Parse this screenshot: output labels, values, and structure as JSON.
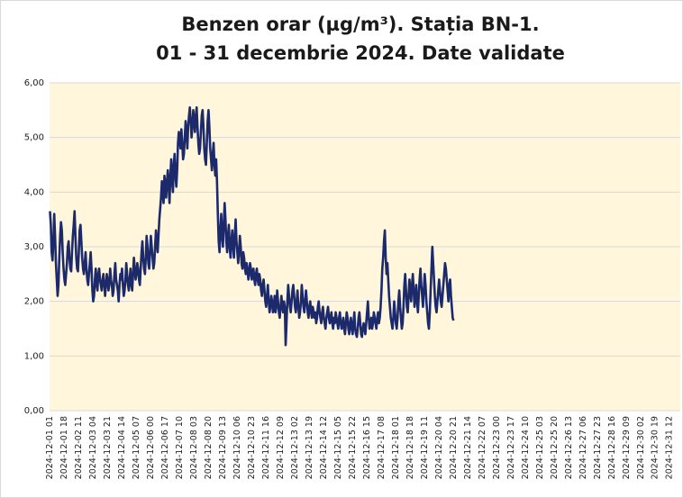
{
  "chart_data": {
    "type": "line",
    "title": [
      "Benzen orar (µg/m³). Stația BN-1.",
      "01 - 31 decembrie 2024. Date validate"
    ],
    "color": "#1c2a6b",
    "grid": true,
    "ylim": [
      0,
      6
    ],
    "yticks": [
      {
        "value": 0,
        "label": "0,00"
      },
      {
        "value": 1,
        "label": "1,00"
      },
      {
        "value": 2,
        "label": "2,00"
      },
      {
        "value": 3,
        "label": "3,00"
      },
      {
        "value": 4,
        "label": "4,00"
      },
      {
        "value": 5,
        "label": "5,00"
      },
      {
        "value": 6,
        "label": "6,00"
      }
    ],
    "categories": [
      "2024-12-01 01",
      null,
      null,
      null,
      null,
      null,
      null,
      null,
      null,
      null,
      null,
      null,
      null,
      null,
      null,
      null,
      null,
      "2024-12-01 18",
      null,
      null,
      null,
      null,
      null,
      null,
      null,
      null,
      null,
      null,
      null,
      null,
      null,
      null,
      null,
      null,
      "2024-12-02 11",
      null,
      null,
      null,
      null,
      null,
      null,
      null,
      null,
      null,
      null,
      null,
      null,
      null,
      null,
      null,
      null,
      "2024-12-03 04",
      null,
      null,
      null,
      null,
      null,
      null,
      null,
      null,
      null,
      null,
      null,
      null,
      null,
      null,
      null,
      null,
      "2024-12-03 21",
      null,
      null,
      null,
      null,
      null,
      null,
      null,
      null,
      null,
      null,
      null,
      null,
      null,
      null,
      null,
      null,
      "2024-12-04 14",
      null,
      null,
      null,
      null,
      null,
      null,
      null,
      null,
      null,
      null,
      null,
      null,
      null,
      null,
      null,
      null,
      "2024-12-05 07",
      null,
      null,
      null,
      null,
      null,
      null,
      null,
      null,
      null,
      null,
      null,
      null,
      null,
      null,
      null,
      null,
      "2024-12-06 00",
      null,
      null,
      null,
      null,
      null,
      null,
      null,
      null,
      null,
      null,
      null,
      null,
      null,
      null,
      null,
      null,
      "2024-12-06 17",
      null,
      null,
      null,
      null,
      null,
      null,
      null,
      null,
      null,
      null,
      null,
      null,
      null,
      null,
      null,
      null,
      "2024-12-07 10",
      null,
      null,
      null,
      null,
      null,
      null,
      null,
      null,
      null,
      null,
      null,
      null,
      null,
      null,
      null,
      null,
      "2024-12-08 03",
      null,
      null,
      null,
      null,
      null,
      null,
      null,
      null,
      null,
      null,
      null,
      null,
      null,
      null,
      null,
      null,
      "2024-12-08 20",
      null,
      null,
      null,
      null,
      null,
      null,
      null,
      null,
      null,
      null,
      null,
      null,
      null,
      null,
      null,
      null,
      "2024-12-09 13",
      null,
      null,
      null,
      null,
      null,
      null,
      null,
      null,
      null,
      null,
      null,
      null,
      null,
      null,
      null,
      null,
      "2024-12-10 06",
      null,
      null,
      null,
      null,
      null,
      null,
      null,
      null,
      null,
      null,
      null,
      null,
      null,
      null,
      null,
      null,
      "2024-12-10 23",
      null,
      null,
      null,
      null,
      null,
      null,
      null,
      null,
      null,
      null,
      null,
      null,
      null,
      null,
      null,
      null,
      "2024-12-11 16",
      null,
      null,
      null,
      null,
      null,
      null,
      null,
      null,
      null,
      null,
      null,
      null,
      null,
      null,
      null,
      null,
      "2024-12-12 09",
      null,
      null,
      null,
      null,
      null,
      null,
      null,
      null,
      null,
      null,
      null,
      null,
      null,
      null,
      null,
      null,
      "2024-12-13 02",
      null,
      null,
      null,
      null,
      null,
      null,
      null,
      null,
      null,
      null,
      null,
      null,
      null,
      null,
      null,
      null,
      "2024-12-13 19",
      null,
      null,
      null,
      null,
      null,
      null,
      null,
      null,
      null,
      null,
      null,
      null,
      null,
      null,
      null,
      null,
      "2024-12-14 12",
      null,
      null,
      null,
      null,
      null,
      null,
      null,
      null,
      null,
      null,
      null,
      null,
      null,
      null,
      null,
      null,
      "2024-12-15 05",
      null,
      null,
      null,
      null,
      null,
      null,
      null,
      null,
      null,
      null,
      null,
      null,
      null,
      null,
      null,
      null,
      "2024-12-15 22",
      null,
      null,
      null,
      null,
      null,
      null,
      null,
      null,
      null,
      null,
      null,
      null,
      null,
      null,
      null,
      null,
      "2024-12-16 15",
      null,
      null,
      null,
      null,
      null,
      null,
      null,
      null,
      null,
      null,
      null,
      null,
      null,
      null,
      null,
      null,
      "2024-12-17 08",
      null,
      null,
      null,
      null,
      null,
      null,
      null,
      null,
      null,
      null,
      null,
      null,
      null,
      null,
      null,
      null,
      "2024-12-18 01",
      null,
      null,
      null,
      null,
      null,
      null,
      null,
      null,
      null,
      null,
      null,
      null,
      null,
      null,
      null,
      null,
      "2024-12-18 18",
      null,
      null,
      null,
      null,
      null,
      null,
      null,
      null,
      null,
      null,
      null,
      null,
      null,
      null,
      null,
      null,
      "2024-12-19 11",
      null,
      null,
      null,
      null,
      null,
      null,
      null,
      null,
      null,
      null,
      null,
      null,
      null,
      null,
      null,
      null,
      "2024-12-20 04",
      null,
      null,
      null,
      null,
      null,
      null,
      null,
      null,
      null,
      null,
      null,
      null,
      null,
      null,
      null,
      null,
      "2024-12-20 21",
      null,
      null,
      null,
      null,
      null,
      null,
      null,
      null,
      null,
      null,
      null,
      null,
      null,
      null,
      null,
      null,
      "2024-12-21 14",
      null,
      null,
      null,
      null,
      null,
      null,
      null,
      null,
      null,
      null,
      null,
      null,
      null,
      null,
      null,
      null,
      "2024-12-22 07",
      null,
      null,
      null,
      null,
      null,
      null,
      null,
      null,
      null,
      null,
      null,
      null,
      null,
      null,
      null,
      null,
      "2024-12-23 00",
      null,
      null,
      null,
      null,
      null,
      null,
      null,
      null,
      null,
      null,
      null,
      null,
      null,
      null,
      null,
      null,
      "2024-12-23 17",
      null,
      null,
      null,
      null,
      null,
      null,
      null,
      null,
      null,
      null,
      null,
      null,
      null,
      null,
      null,
      null,
      "2024-12-24 10",
      null,
      null,
      null,
      null,
      null,
      null,
      null,
      null,
      null,
      null,
      null,
      null,
      null,
      null,
      null,
      null,
      "2024-12-25 03",
      null,
      null,
      null,
      null,
      null,
      null,
      null,
      null,
      null,
      null,
      null,
      null,
      null,
      null,
      null,
      null,
      "2024-12-25 20",
      null,
      null,
      null,
      null,
      null,
      null,
      null,
      null,
      null,
      null,
      null,
      null,
      null,
      null,
      null,
      null,
      "2024-12-26 13",
      null,
      null,
      null,
      null,
      null,
      null,
      null,
      null,
      null,
      null,
      null,
      null,
      null,
      null,
      null,
      null,
      "2024-12-27 06",
      null,
      null,
      null,
      null,
      null,
      null,
      null,
      null,
      null,
      null,
      null,
      null,
      null,
      null,
      null,
      null,
      "2024-12-27 23",
      null,
      null,
      null,
      null,
      null,
      null,
      null,
      null,
      null,
      null,
      null,
      null,
      null,
      null,
      null,
      null,
      "2024-12-28 16",
      null,
      null,
      null,
      null,
      null,
      null,
      null,
      null,
      null,
      null,
      null,
      null,
      null,
      null,
      null,
      null,
      "2024-12-29 09",
      null,
      null,
      null,
      null,
      null,
      null,
      null,
      null,
      null,
      null,
      null,
      null,
      null,
      null,
      null,
      null,
      "2024-12-30 02",
      null,
      null,
      null,
      null,
      null,
      null,
      null,
      null,
      null,
      null,
      null,
      null,
      null,
      null,
      null,
      null,
      "2024-12-30 19",
      null,
      null,
      null,
      null,
      null,
      null,
      null,
      null,
      null,
      null,
      null,
      null,
      null,
      null,
      null,
      null,
      "2024-12-31 12",
      null,
      null,
      null,
      null,
      null,
      null,
      null,
      null,
      null,
      null,
      null,
      null
    ],
    "values": [
      3.65,
      3.4,
      2.9,
      2.75,
      3.1,
      3.6,
      3.2,
      2.7,
      2.4,
      2.1,
      2.3,
      2.8,
      3.2,
      3.45,
      3.3,
      2.9,
      2.6,
      2.4,
      2.3,
      2.5,
      2.7,
      3.0,
      3.1,
      2.8,
      2.6,
      2.55,
      2.9,
      3.2,
      3.4,
      3.65,
      3.2,
      2.8,
      2.6,
      2.55,
      2.9,
      3.3,
      3.4,
      3.1,
      2.8,
      2.6,
      2.5,
      2.7,
      2.9,
      2.6,
      2.4,
      2.3,
      2.5,
      2.7,
      2.9,
      2.6,
      2.2,
      2.0,
      2.1,
      2.4,
      2.6,
      2.3,
      2.2,
      2.5,
      2.6,
      2.4,
      2.3,
      2.2,
      2.4,
      2.5,
      2.3,
      2.1,
      2.3,
      2.5,
      2.4,
      2.2,
      2.3,
      2.6,
      2.4,
      2.3,
      2.1,
      2.2,
      2.5,
      2.7,
      2.4,
      2.3,
      2.2,
      2.0,
      2.3,
      2.5,
      2.4,
      2.6,
      2.3,
      2.1,
      2.2,
      2.4,
      2.7,
      2.5,
      2.3,
      2.2,
      2.4,
      2.6,
      2.3,
      2.2,
      2.5,
      2.8,
      2.6,
      2.4,
      2.5,
      2.7,
      2.6,
      2.4,
      2.3,
      2.6,
      2.9,
      3.1,
      2.8,
      2.6,
      2.5,
      2.8,
      3.2,
      3.0,
      2.7,
      2.6,
      2.9,
      3.2,
      3.0,
      2.8,
      2.6,
      2.7,
      3.0,
      3.3,
      3.1,
      2.9,
      3.2,
      3.5,
      3.7,
      3.9,
      4.2,
      4.0,
      3.8,
      4.3,
      4.1,
      3.9,
      4.2,
      4.4,
      4.1,
      3.8,
      4.3,
      4.6,
      4.2,
      4.0,
      4.5,
      4.7,
      4.3,
      4.1,
      4.4,
      4.9,
      5.1,
      5.0,
      4.8,
      5.15,
      4.9,
      4.6,
      4.7,
      5.0,
      5.3,
      5.1,
      4.8,
      5.2,
      5.4,
      5.55,
      5.3,
      5.0,
      5.2,
      5.5,
      5.3,
      5.1,
      5.4,
      5.55,
      5.2,
      4.9,
      4.7,
      4.8,
      5.1,
      5.4,
      5.5,
      5.2,
      4.8,
      4.6,
      4.5,
      4.9,
      5.3,
      5.5,
      5.2,
      4.8,
      4.6,
      4.4,
      4.7,
      4.9,
      4.5,
      4.3,
      4.6,
      4.2,
      3.6,
      3.1,
      2.9,
      3.3,
      3.6,
      3.2,
      3.0,
      3.4,
      3.8,
      3.5,
      3.1,
      2.9,
      3.2,
      3.4,
      3.0,
      2.8,
      3.1,
      3.3,
      3.0,
      2.8,
      3.2,
      3.5,
      3.1,
      2.9,
      2.7,
      2.9,
      3.2,
      3.0,
      2.7,
      2.6,
      2.9,
      2.8,
      2.6,
      2.5,
      2.7,
      2.6,
      2.4,
      2.5,
      2.7,
      2.6,
      2.4,
      2.5,
      2.6,
      2.4,
      2.3,
      2.5,
      2.6,
      2.4,
      2.3,
      2.5,
      2.4,
      2.2,
      2.1,
      2.3,
      2.4,
      2.2,
      2.0,
      1.9,
      2.1,
      2.3,
      2.0,
      1.8,
      1.9,
      2.1,
      2.0,
      1.8,
      1.9,
      2.1,
      1.8,
      1.9,
      2.2,
      2.0,
      1.8,
      1.7,
      1.9,
      2.1,
      1.9,
      1.8,
      2.0,
      1.9,
      1.2,
      1.6,
      2.0,
      2.3,
      2.1,
      1.9,
      1.8,
      2.0,
      2.2,
      2.3,
      2.1,
      1.9,
      1.8,
      2.0,
      2.2,
      1.9,
      1.7,
      1.8,
      2.0,
      2.3,
      2.1,
      1.9,
      1.8,
      2.0,
      2.2,
      2.0,
      1.8,
      1.7,
      1.9,
      2.0,
      1.8,
      1.7,
      1.9,
      1.8,
      1.7,
      1.8,
      1.6,
      1.7,
      1.9,
      2.0,
      1.8,
      1.7,
      1.6,
      1.8,
      1.9,
      1.7,
      1.6,
      1.5,
      1.7,
      1.8,
      1.9,
      1.7,
      1.6,
      1.7,
      1.8,
      1.6,
      1.5,
      1.7,
      1.6,
      1.8,
      1.7,
      1.6,
      1.5,
      1.7,
      1.8,
      1.6,
      1.5,
      1.6,
      1.7,
      1.5,
      1.4,
      1.6,
      1.8,
      1.7,
      1.5,
      1.4,
      1.6,
      1.7,
      1.5,
      1.4,
      1.6,
      1.8,
      1.5,
      1.4,
      1.35,
      1.5,
      1.7,
      1.8,
      1.6,
      1.4,
      1.35,
      1.5,
      1.6,
      1.5,
      1.4,
      1.6,
      1.8,
      2.0,
      1.7,
      1.5,
      1.6,
      1.7,
      1.5,
      1.6,
      1.8,
      1.7,
      1.6,
      1.5,
      1.7,
      1.8,
      1.6,
      1.7,
      1.9,
      2.2,
      2.6,
      2.8,
      3.1,
      3.3,
      2.8,
      2.5,
      2.7,
      2.4,
      2.1,
      1.9,
      1.7,
      1.6,
      1.5,
      1.7,
      2.0,
      1.8,
      1.6,
      1.5,
      1.7,
      2.0,
      2.2,
      1.9,
      1.7,
      1.5,
      1.6,
      1.9,
      2.3,
      2.5,
      2.2,
      1.9,
      1.8,
      2.1,
      2.4,
      2.2,
      2.0,
      2.3,
      2.5,
      2.2,
      1.9,
      2.1,
      2.3,
      2.0,
      1.8,
      2.1,
      2.4,
      2.6,
      2.3,
      2.1,
      1.9,
      2.2,
      2.5,
      2.3,
      2.0,
      1.8,
      1.6,
      1.5,
      1.8,
      2.2,
      2.6,
      3.0,
      2.7,
      2.4,
      2.1,
      1.9,
      1.8,
      2.0,
      2.2,
      2.4,
      2.2,
      2.0,
      1.9,
      2.1,
      2.3,
      2.5,
      2.7,
      2.6,
      2.4,
      2.2,
      2.0,
      2.3,
      2.4,
      2.1,
      1.9,
      1.7,
      1.65,
      null,
      null,
      null,
      null,
      null,
      null,
      null,
      null,
      null,
      null,
      null,
      null,
      null,
      null,
      null,
      null,
      null,
      null,
      null,
      null,
      null,
      null,
      null,
      null,
      null,
      null,
      null,
      null,
      null,
      null,
      null,
      null,
      null,
      null,
      null,
      null,
      null,
      null,
      null,
      null,
      null,
      null,
      null,
      null,
      null,
      null,
      null,
      null,
      null,
      null,
      null,
      null,
      null,
      null,
      null,
      null,
      null,
      null,
      null,
      null,
      null,
      null,
      null,
      null,
      null,
      null,
      null,
      null,
      null,
      null,
      null,
      null,
      null,
      null,
      null,
      null,
      null,
      null,
      null,
      null,
      null,
      null,
      null,
      null,
      null,
      null,
      null,
      null,
      null,
      null,
      null,
      null,
      null,
      null,
      null,
      null,
      null,
      null,
      null,
      null,
      null,
      null,
      null,
      null,
      null,
      null,
      null,
      null,
      null,
      null,
      null,
      null,
      null,
      null,
      null,
      null,
      null,
      null,
      null,
      null,
      null,
      null,
      null,
      null,
      null,
      null,
      null,
      null,
      null,
      null,
      null,
      null,
      null,
      null,
      null,
      null,
      null,
      null,
      null,
      null,
      null,
      null,
      null,
      null,
      null,
      null,
      null,
      null,
      null,
      null,
      null,
      null,
      null,
      null,
      null,
      null,
      null,
      null,
      null,
      null,
      null,
      null,
      null,
      null,
      null,
      null,
      null,
      null,
      null,
      null,
      null,
      null,
      null,
      null,
      null,
      null,
      null,
      null,
      null,
      null,
      null,
      null,
      null,
      null,
      null,
      null,
      null,
      null,
      null,
      null,
      null,
      null,
      null,
      null,
      null,
      null,
      null,
      null,
      null,
      null,
      null,
      null,
      null,
      null,
      null,
      null,
      null,
      null,
      null,
      null,
      null,
      null,
      null,
      null,
      null,
      null,
      null,
      null,
      null,
      null,
      null,
      null,
      null,
      null,
      null,
      null,
      null,
      null,
      null,
      null,
      null,
      null,
      null,
      null,
      null,
      null,
      null,
      null,
      null,
      null,
      null,
      null,
      null,
      null,
      null,
      null,
      null,
      null,
      null,
      null,
      null,
      null,
      null,
      null,
      null,
      null,
      null,
      null,
      null,
      null,
      null,
      null,
      null,
      null,
      null,
      null,
      null
    ]
  }
}
